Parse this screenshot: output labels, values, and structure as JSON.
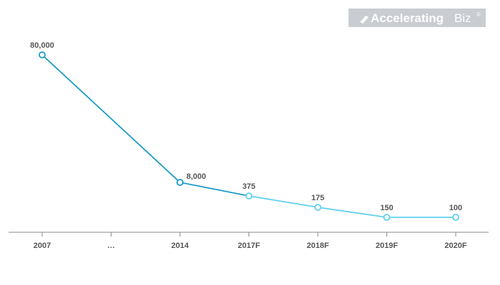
{
  "logo": {
    "text_main": "Accelerating",
    "text_light": "Biz",
    "mark": "®"
  },
  "colors": {
    "line_dark": "#1a9bc6",
    "line_light": "#5fd0ee",
    "axis": "#888888",
    "label": "#555555",
    "logo_bg": "#c9ccd0"
  },
  "chart_data": {
    "type": "line",
    "categories": [
      "2007",
      "…",
      "2014",
      "2017F",
      "2018F",
      "2019F",
      "2020F"
    ],
    "points": [
      {
        "category": "2007",
        "value": 80000,
        "label": "80,000"
      },
      {
        "category": "2014",
        "value": 8000,
        "label": "8,000"
      },
      {
        "category": "2017F",
        "value": 375,
        "label": "375"
      },
      {
        "category": "2018F",
        "value": 175,
        "label": "175"
      },
      {
        "category": "2019F",
        "value": 150,
        "label": "150"
      },
      {
        "category": "2020F",
        "value": 100,
        "label": "100"
      }
    ],
    "title": "",
    "xlabel": "",
    "ylabel": "",
    "y_axis_visible": false,
    "grid": false,
    "legend": "none"
  }
}
